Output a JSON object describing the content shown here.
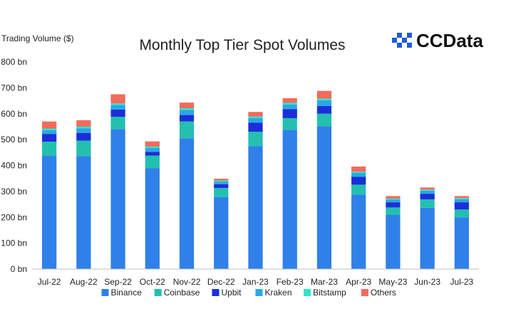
{
  "brand": {
    "logo_text": "CCData",
    "logo_color": "#1f5bd8",
    "logo_icon": "ccdata-logo-icon"
  },
  "chart_data": {
    "type": "bar",
    "stacked": true,
    "title": "Monthly Top Tier Spot Volumes",
    "ylabel": "Trading Volume ($)",
    "xlabel": "",
    "ylim": [
      0,
      800
    ],
    "yunit": "bn",
    "yticks": [
      "0 bn",
      "100 bn",
      "200 bn",
      "300 bn",
      "400 bn",
      "500 bn",
      "600 bn",
      "700 bn",
      "800 bn"
    ],
    "grid": false,
    "legend_position": "bottom",
    "categories": [
      "Jul-22",
      "Aug-22",
      "Sep-22",
      "Oct-22",
      "Nov-22",
      "Dec-22",
      "Jan-23",
      "Feb-23",
      "Mar-23",
      "Apr-23",
      "May-23",
      "Jun-23",
      "Jul-23"
    ],
    "series": [
      {
        "name": "Binance",
        "color": "#2f80e8",
        "values": [
          437,
          436,
          540,
          390,
          505,
          278,
          475,
          538,
          552,
          288,
          210,
          237,
          200
        ]
      },
      {
        "name": "Coinbase",
        "color": "#23c0b0",
        "values": [
          55,
          60,
          48,
          48,
          65,
          35,
          55,
          45,
          48,
          38,
          28,
          32,
          30
        ]
      },
      {
        "name": "Upbit",
        "color": "#1b2fd6",
        "values": [
          30,
          30,
          28,
          15,
          25,
          15,
          35,
          35,
          30,
          30,
          20,
          22,
          28
        ]
      },
      {
        "name": "Kraken",
        "color": "#29a8e6",
        "values": [
          15,
          18,
          18,
          15,
          20,
          10,
          18,
          18,
          22,
          15,
          10,
          12,
          12
        ]
      },
      {
        "name": "Bitstamp",
        "color": "#2ee6c8",
        "values": [
          6,
          6,
          6,
          5,
          6,
          4,
          6,
          6,
          6,
          5,
          4,
          4,
          4
        ]
      },
      {
        "name": "Others",
        "color": "#f26b5b",
        "values": [
          27,
          25,
          35,
          20,
          22,
          7,
          18,
          18,
          30,
          20,
          10,
          8,
          8
        ]
      }
    ]
  }
}
